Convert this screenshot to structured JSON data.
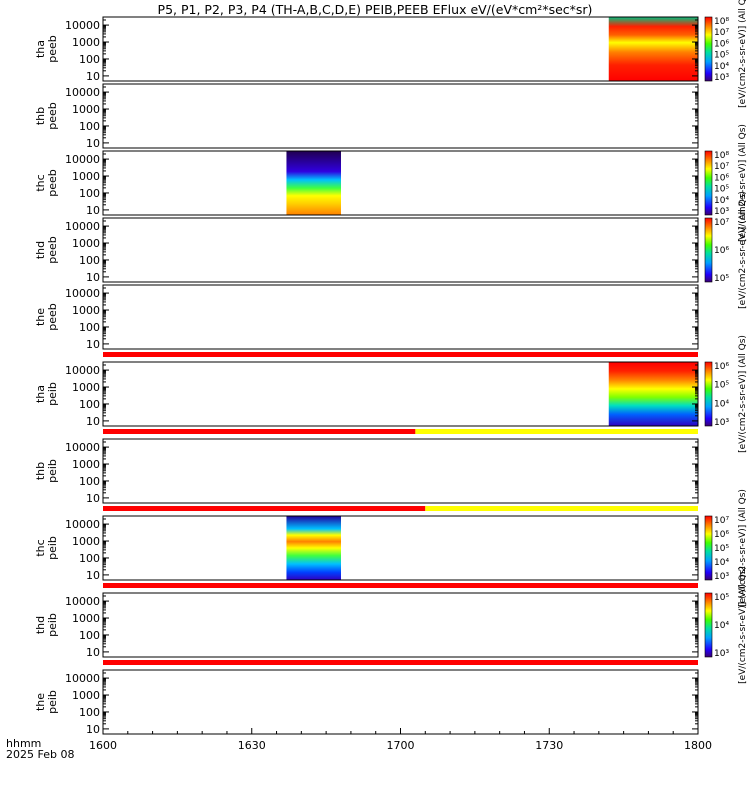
{
  "title": "P5, P1, P2, P3, P4 (TH-A,B,C,D,E) PEIB,PEEB EFlux eV/(eV*cm²*sec*sr)",
  "time_axis": {
    "label_line1": "hhmm",
    "label_line2": "2025 Feb 08",
    "ticks": [
      "1600",
      "1630",
      "1700",
      "1730",
      "1800"
    ]
  },
  "chart_data": {
    "type": "heatmap",
    "time_range": [
      "16:00",
      "18:00"
    ],
    "y_scale": "log",
    "y_ticks": [
      "10",
      "100",
      "1000",
      "10000"
    ],
    "panels": [
      {
        "id": "tha-peeb",
        "label_line1": "tha",
        "label_line2": "peeb",
        "data_time": [
          "17:42",
          "18:00"
        ],
        "colorbar": {
          "ticks": [
            "10³",
            "10⁴",
            "10⁵",
            "10⁶",
            "10⁷",
            "10⁸"
          ],
          "label": "[eV/(cm2-s-sr-eV)] (All Qs)"
        }
      },
      {
        "id": "thb-peeb",
        "label_line1": "thb",
        "label_line2": "peeb",
        "data_time": null,
        "colorbar": null
      },
      {
        "id": "thc-peeb",
        "label_line1": "thc",
        "label_line2": "peeb",
        "data_time": [
          "16:37",
          "16:48"
        ],
        "colorbar": {
          "ticks": [
            "10³",
            "10⁴",
            "10⁵",
            "10⁶",
            "10⁷",
            "10⁸"
          ],
          "label": "[eV/(cm2-s-sr-eV)] (All Qs)"
        }
      },
      {
        "id": "thd-peeb",
        "label_line1": "thd",
        "label_line2": "peeb",
        "data_time": null,
        "colorbar": {
          "ticks": [
            "10⁵",
            "10⁶",
            "10⁷"
          ],
          "label": "[eV/(cm2-s-sr-eV)] (All Qs)"
        }
      },
      {
        "id": "the-peeb",
        "label_line1": "the",
        "label_line2": "peeb",
        "data_time": null,
        "colorbar": null
      },
      {
        "id": "tha-peib",
        "label_line1": "tha",
        "label_line2": "peib",
        "data_time": [
          "17:42",
          "18:00"
        ],
        "colorbar": {
          "ticks": [
            "10³",
            "10⁴",
            "10⁵",
            "10⁶"
          ],
          "label": "[eV/(cm2-s-sr-eV)] (All Qs)"
        }
      },
      {
        "id": "thb-peib",
        "label_line1": "thb",
        "label_line2": "peib",
        "data_time": null,
        "colorbar": null
      },
      {
        "id": "thc-peib",
        "label_line1": "thc",
        "label_line2": "peib",
        "data_time": [
          "16:37",
          "16:48"
        ],
        "colorbar": {
          "ticks": [
            "10³",
            "10⁴",
            "10⁵",
            "10⁶",
            "10⁷"
          ],
          "label": "[eV/(cm2-s-sr-eV)] (All Qs)"
        }
      },
      {
        "id": "thd-peib",
        "label_line1": "thd",
        "label_line2": "peib",
        "data_time": null,
        "colorbar": {
          "ticks": [
            "10³",
            "10⁴",
            "10⁵"
          ],
          "label": "[eV/(cm2-s-sr-eV)] (All Qs)"
        }
      },
      {
        "id": "the-peib",
        "label_line1": "the",
        "label_line2": "peib",
        "data_time": null,
        "colorbar": null
      }
    ],
    "status_bars": [
      {
        "after_panel": 4,
        "segments": [
          {
            "color": "#ff0000",
            "start": "16:00",
            "end": "18:00"
          }
        ]
      },
      {
        "after_panel": 5,
        "segments": [
          {
            "color": "#ff0000",
            "start": "16:00",
            "end": "17:03"
          },
          {
            "color": "#ffff00",
            "start": "17:03",
            "end": "18:00"
          }
        ]
      },
      {
        "after_panel": 6,
        "segments": [
          {
            "color": "#ff0000",
            "start": "16:00",
            "end": "17:05"
          },
          {
            "color": "#ffff00",
            "start": "17:05",
            "end": "18:00"
          }
        ]
      },
      {
        "after_panel": 7,
        "segments": [
          {
            "color": "#ff0000",
            "start": "16:00",
            "end": "18:00"
          }
        ]
      },
      {
        "after_panel": 8,
        "segments": [
          {
            "color": "#ff0000",
            "start": "16:00",
            "end": "18:00"
          }
        ]
      }
    ]
  },
  "colors": {
    "red": "#ff0000",
    "yellow": "#ffff00",
    "black": "#000000"
  }
}
